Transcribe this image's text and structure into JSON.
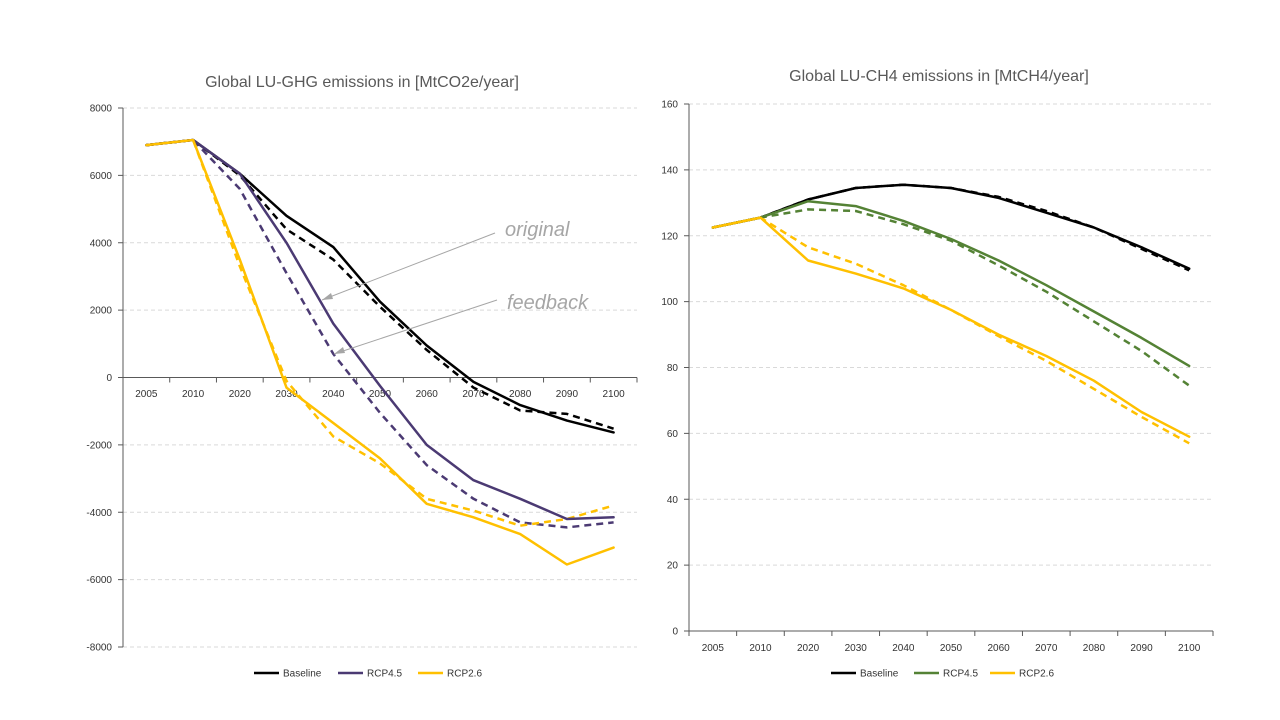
{
  "chart_data": [
    {
      "type": "line",
      "title": "Global LU-GHG emissions in [MtCO2e/year]",
      "categories": [
        "2005",
        "2010",
        "2020",
        "2030",
        "2040",
        "2050",
        "2060",
        "2070",
        "2080",
        "2090",
        "2100"
      ],
      "ylim": [
        -8000,
        8000
      ],
      "yticks": [
        8000,
        6000,
        4000,
        2000,
        0,
        -2000,
        -4000,
        -6000,
        -8000
      ],
      "grid": true,
      "legend": "bottom",
      "legend_entries": [
        {
          "name": "Baseline",
          "color": "#000000"
        },
        {
          "name": "RCP4.5",
          "color": "#4b3a73"
        },
        {
          "name": "RCP2.6",
          "color": "#ffc000"
        }
      ],
      "series": [
        {
          "group": "Baseline",
          "style": "solid",
          "color": "#000000",
          "values": [
            6900,
            7050,
            6050,
            4800,
            3870,
            2250,
            950,
            -130,
            -820,
            -1280,
            -1630
          ]
        },
        {
          "group": "Baseline",
          "style": "dashed",
          "color": "#000000",
          "values": [
            6900,
            7050,
            6000,
            4400,
            3500,
            2100,
            820,
            -300,
            -980,
            -1080,
            -1520
          ]
        },
        {
          "group": "RCP4.5",
          "style": "solid",
          "color": "#4b3a73",
          "values": [
            6900,
            7050,
            6050,
            4000,
            1600,
            -250,
            -2000,
            -3050,
            -3600,
            -4200,
            -4150
          ]
        },
        {
          "group": "RCP4.5",
          "style": "dashed",
          "color": "#4b3a73",
          "values": [
            6900,
            7050,
            5600,
            3100,
            700,
            -1050,
            -2600,
            -3600,
            -4300,
            -4450,
            -4300
          ]
        },
        {
          "group": "RCP2.6",
          "style": "solid",
          "color": "#ffc000",
          "values": [
            6900,
            7050,
            3500,
            -300,
            -1350,
            -2400,
            -3750,
            -4150,
            -4650,
            -5550,
            -5050
          ]
        },
        {
          "group": "RCP2.6",
          "style": "dashed",
          "color": "#ffc000",
          "values": [
            6900,
            7050,
            3300,
            -100,
            -1750,
            -2550,
            -3600,
            -3950,
            -4400,
            -4200,
            -3800
          ]
        }
      ],
      "annotations": [
        {
          "text": "original",
          "points_to": "solid line"
        },
        {
          "text": "feedback",
          "points_to": "dashed line"
        }
      ]
    },
    {
      "type": "line",
      "title": "Global LU-CH4 emissions in [MtCH4/year]",
      "categories": [
        "2005",
        "2010",
        "2020",
        "2030",
        "2040",
        "2050",
        "2060",
        "2070",
        "2080",
        "2090",
        "2100"
      ],
      "ylim": [
        0,
        160
      ],
      "yticks": [
        160,
        140,
        120,
        100,
        80,
        60,
        40,
        20,
        0
      ],
      "grid": true,
      "legend": "bottom",
      "legend_entries": [
        {
          "name": "Baseline",
          "color": "#000000"
        },
        {
          "name": "RCP4.5",
          "color": "#548235"
        },
        {
          "name": "RCP2.6",
          "color": "#ffc000"
        }
      ],
      "series": [
        {
          "group": "Baseline",
          "style": "solid",
          "color": "#000000",
          "values": [
            122.5,
            125.5,
            131,
            134.5,
            135.5,
            134.5,
            131.5,
            127,
            122.5,
            116.5,
            110
          ]
        },
        {
          "group": "Baseline",
          "style": "dashed",
          "color": "#000000",
          "values": [
            122.5,
            125.5,
            131,
            134.5,
            135.5,
            134.5,
            131.8,
            127.5,
            122.5,
            116,
            109.5
          ]
        },
        {
          "group": "RCP4.5",
          "style": "solid",
          "color": "#548235",
          "values": [
            122.5,
            125.5,
            130.5,
            129,
            124.5,
            119,
            112.5,
            105,
            97,
            89,
            80.5
          ]
        },
        {
          "group": "RCP4.5",
          "style": "dashed",
          "color": "#548235",
          "values": [
            122.5,
            125.5,
            128,
            127.5,
            123.5,
            118.5,
            111,
            103,
            94,
            85,
            74.5
          ]
        },
        {
          "group": "RCP2.6",
          "style": "solid",
          "color": "#ffc000",
          "values": [
            122.5,
            125.5,
            112.5,
            108.5,
            104,
            97.5,
            90,
            83.5,
            76,
            66.5,
            59
          ]
        },
        {
          "group": "RCP2.6",
          "style": "dashed",
          "color": "#ffc000",
          "values": [
            122.5,
            125.5,
            116.5,
            111.5,
            105,
            97.5,
            89.5,
            82,
            73.5,
            65,
            57
          ]
        }
      ]
    }
  ]
}
